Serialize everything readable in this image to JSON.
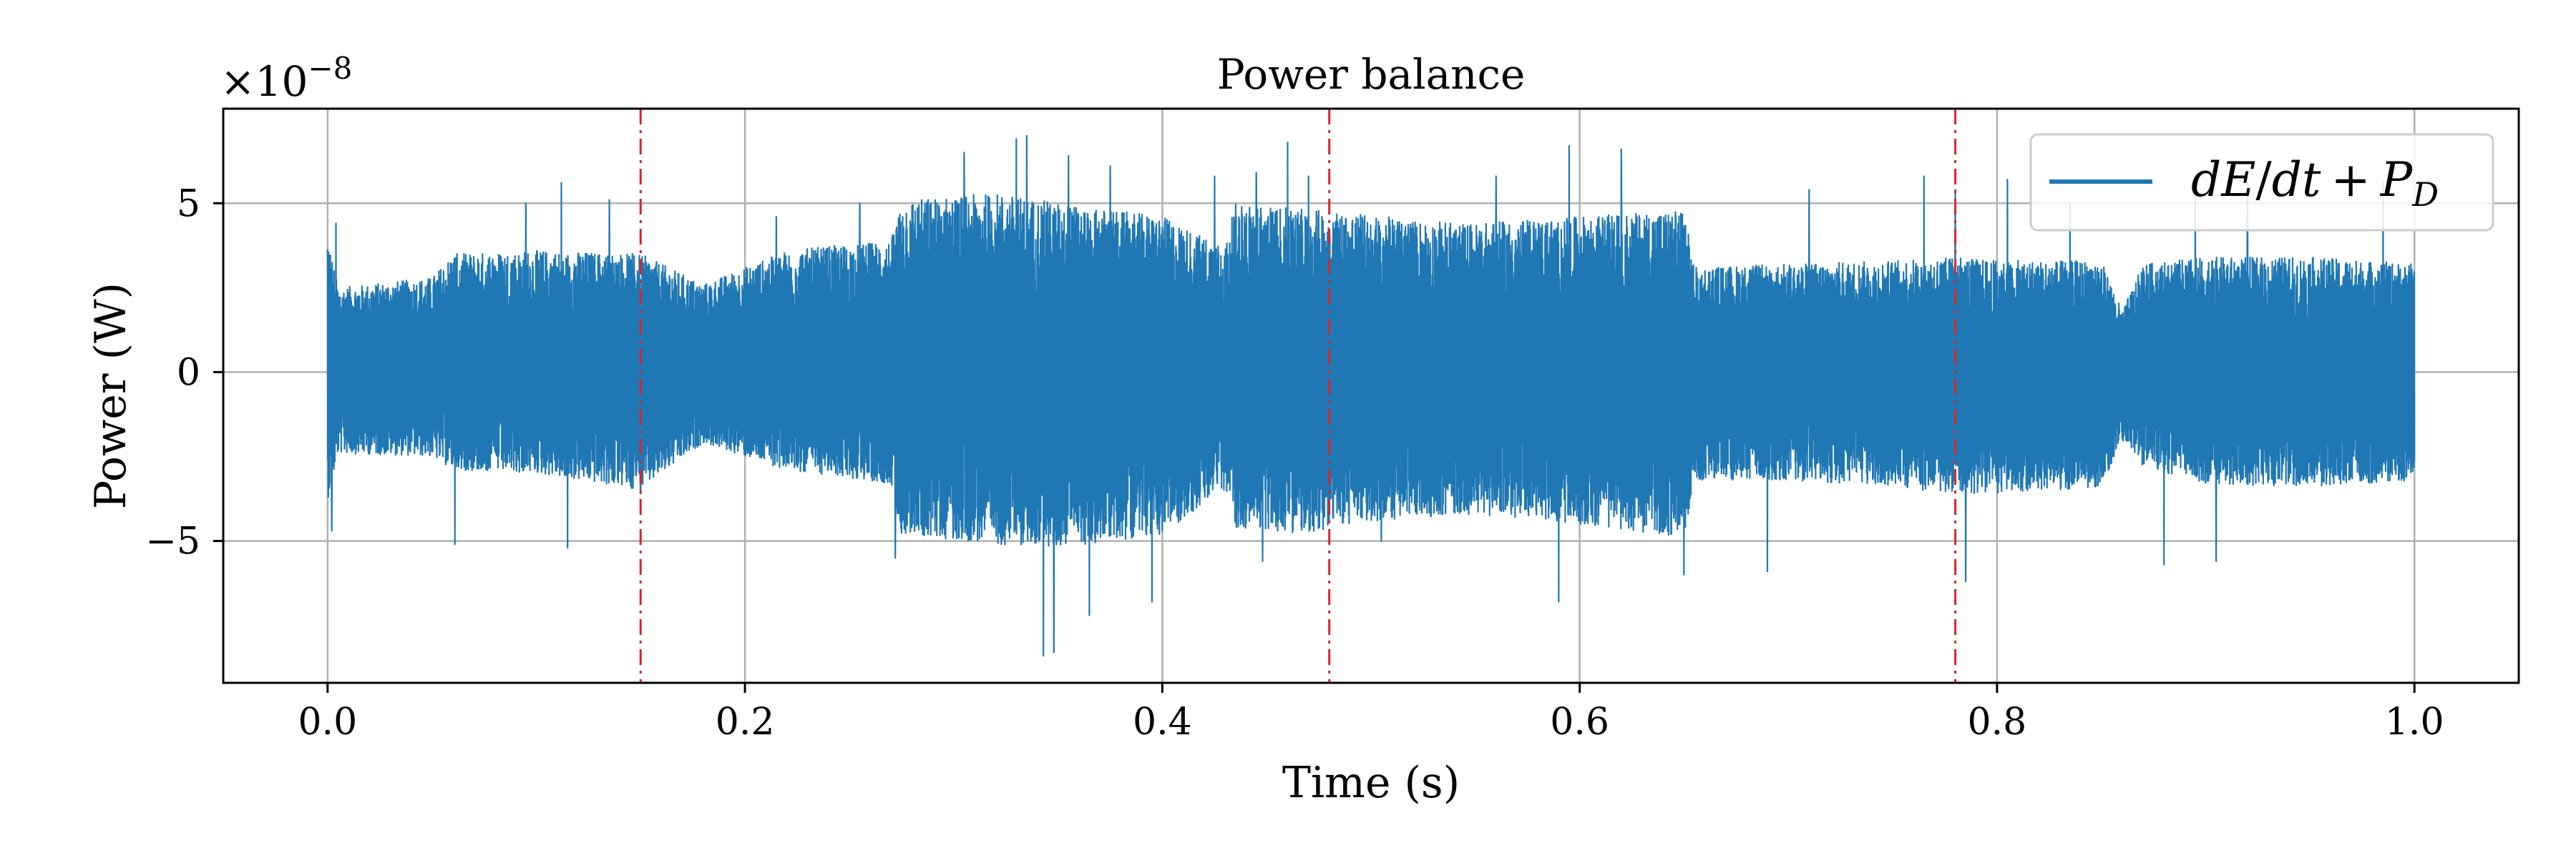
{
  "chart_data": {
    "type": "line",
    "title": "Power balance",
    "xlabel": "Time (s)",
    "ylabel": "Power (W)",
    "y_multiplier": "×10",
    "y_multiplier_exp": "−8",
    "xlim": [
      -0.05,
      1.05
    ],
    "ylim": [
      -9.2,
      7.8
    ],
    "x_ticks": [
      0.0,
      0.2,
      0.4,
      0.6,
      0.8,
      1.0
    ],
    "x_tick_labels": [
      "0.0",
      "0.2",
      "0.4",
      "0.6",
      "0.8",
      "1.0"
    ],
    "y_ticks": [
      -5,
      0,
      5
    ],
    "y_tick_labels": [
      "−5",
      "0",
      "5"
    ],
    "grid": true,
    "legend": {
      "placement": "upper-right",
      "entries": [
        "dE/dt + P_D"
      ]
    },
    "legend_label": {
      "d": "d",
      "E": "E",
      "slash": "/",
      "dt": "dt",
      "plus": "+",
      "P": "P",
      "sub": "D"
    },
    "colors": {
      "series": "#1f77b4",
      "vlines": "#d62728",
      "grid": "#b0b0b0"
    },
    "vlines": [
      0.15,
      0.48,
      0.78
    ],
    "series": [
      {
        "name": "dE/dt + P_D",
        "x_range": [
          0.0,
          1.0
        ],
        "envelope": {
          "x": [
            0.0,
            0.005,
            0.05,
            0.06,
            0.1,
            0.15,
            0.18,
            0.22,
            0.27,
            0.275,
            0.32,
            0.35,
            0.4,
            0.43,
            0.435,
            0.47,
            0.48,
            0.52,
            0.55,
            0.6,
            0.65,
            0.655,
            0.7,
            0.75,
            0.78,
            0.8,
            0.85,
            0.86,
            0.87,
            0.9,
            0.95,
            1.0
          ],
          "upper": [
            4.2,
            2.5,
            2.8,
            3.5,
            3.6,
            3.5,
            2.6,
            3.6,
            3.9,
            5.1,
            5.3,
            5.0,
            4.6,
            3.7,
            5.0,
            4.8,
            4.8,
            4.5,
            4.4,
            4.6,
            4.8,
            3.1,
            3.2,
            3.3,
            3.4,
            3.3,
            3.3,
            1.8,
            3.2,
            3.4,
            3.4,
            3.2
          ],
          "lower": [
            -3.8,
            -2.4,
            -2.5,
            -2.9,
            -3.0,
            -3.5,
            -2.1,
            -2.9,
            -3.3,
            -4.8,
            -5.1,
            -5.2,
            -4.8,
            -3.5,
            -4.6,
            -4.8,
            -4.6,
            -4.3,
            -4.2,
            -4.5,
            -4.9,
            -3.2,
            -3.2,
            -3.4,
            -3.6,
            -3.6,
            -3.4,
            -2.0,
            -2.8,
            -3.3,
            -3.4,
            -3.2
          ]
        },
        "spikes": [
          [
            0.002,
            -4.7
          ],
          [
            0.004,
            4.4
          ],
          [
            0.061,
            -5.1
          ],
          [
            0.095,
            5.0
          ],
          [
            0.112,
            5.6
          ],
          [
            0.115,
            -5.2
          ],
          [
            0.135,
            5.1
          ],
          [
            0.15,
            -3.6
          ],
          [
            0.215,
            4.6
          ],
          [
            0.255,
            5.0
          ],
          [
            0.272,
            -5.5
          ],
          [
            0.305,
            6.5
          ],
          [
            0.33,
            6.9
          ],
          [
            0.335,
            7.0
          ],
          [
            0.343,
            -8.4
          ],
          [
            0.348,
            -8.3
          ],
          [
            0.355,
            6.4
          ],
          [
            0.365,
            -7.2
          ],
          [
            0.375,
            6.1
          ],
          [
            0.395,
            -6.8
          ],
          [
            0.425,
            5.8
          ],
          [
            0.445,
            5.9
          ],
          [
            0.448,
            -5.6
          ],
          [
            0.46,
            6.8
          ],
          [
            0.47,
            5.8
          ],
          [
            0.505,
            -5.0
          ],
          [
            0.56,
            5.8
          ],
          [
            0.59,
            -6.8
          ],
          [
            0.595,
            6.7
          ],
          [
            0.62,
            6.6
          ],
          [
            0.65,
            -6.0
          ],
          [
            0.69,
            -5.9
          ],
          [
            0.71,
            5.4
          ],
          [
            0.765,
            5.8
          ],
          [
            0.78,
            5.4
          ],
          [
            0.785,
            -6.2
          ],
          [
            0.805,
            5.7
          ],
          [
            0.835,
            5.0
          ],
          [
            0.88,
            -5.7
          ],
          [
            0.895,
            5.5
          ],
          [
            0.905,
            -5.6
          ],
          [
            0.92,
            5.9
          ],
          [
            0.985,
            5.6
          ]
        ]
      }
    ]
  }
}
